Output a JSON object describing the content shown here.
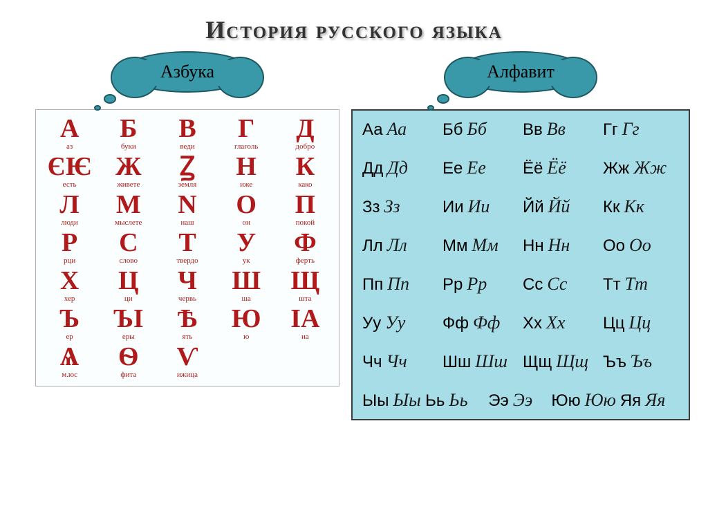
{
  "title": {
    "text": "История русского языка",
    "color": "#333333",
    "fontsize": 36
  },
  "cloud_labels": {
    "azbuka": {
      "text": "Азбука",
      "fontsize": 26,
      "color": "#000000"
    },
    "alphabet": {
      "text": "Алфавит",
      "fontsize": 26,
      "color": "#000000"
    }
  },
  "cloud_style": {
    "fill": "#3a99a8",
    "stroke": "#1f5862",
    "stroke_width": 2
  },
  "azbuka": {
    "letter_color": "#b01a1a",
    "name_color": "#b01a1a",
    "letter_fontsize": 38,
    "name_fontsize": 11,
    "background": "#fbfefe",
    "border_color": "#b0b0b0",
    "cells": [
      {
        "l": "А",
        "n": "аз"
      },
      {
        "l": "Б",
        "n": "буки"
      },
      {
        "l": "В",
        "n": "веди"
      },
      {
        "l": "Г",
        "n": "глаголь"
      },
      {
        "l": "Д",
        "n": "добро"
      },
      {
        "l": "ЄѤ",
        "n": "есть"
      },
      {
        "l": "Ж",
        "n": "живете"
      },
      {
        "l": "Ꙁ",
        "n": "земля"
      },
      {
        "l": "Н",
        "n": "иже"
      },
      {
        "l": "К",
        "n": "како"
      },
      {
        "l": "Л",
        "n": "люди"
      },
      {
        "l": "М",
        "n": "мыслете"
      },
      {
        "l": "N",
        "n": "наш"
      },
      {
        "l": "О",
        "n": "он"
      },
      {
        "l": "П",
        "n": "покой"
      },
      {
        "l": "Р",
        "n": "рци"
      },
      {
        "l": "С",
        "n": "слово"
      },
      {
        "l": "Т",
        "n": "твердо"
      },
      {
        "l": "У",
        "n": "ук"
      },
      {
        "l": "Ф",
        "n": "ферть"
      },
      {
        "l": "Х",
        "n": "хер"
      },
      {
        "l": "Ц",
        "n": "ци"
      },
      {
        "l": "Ч",
        "n": "червь"
      },
      {
        "l": "Ш",
        "n": "ша"
      },
      {
        "l": "Щ",
        "n": "шта"
      },
      {
        "l": "Ъ",
        "n": "ер"
      },
      {
        "l": "ЪӀ",
        "n": "еры"
      },
      {
        "l": "Ѣ",
        "n": "ять"
      },
      {
        "l": "Ю",
        "n": "ю"
      },
      {
        "l": "ІА",
        "n": "иа"
      },
      {
        "l": "Ѧ",
        "n": "м.юс"
      },
      {
        "l": "Ѳ",
        "n": "фита"
      },
      {
        "l": "Ѵ",
        "n": "ижица"
      },
      {
        "l": "",
        "n": ""
      },
      {
        "l": "",
        "n": ""
      }
    ]
  },
  "alphabet": {
    "background": "#a7dde7",
    "border_color": "#3c3c3c",
    "print_color": "#000000",
    "cursive_color": "#1a1a1a",
    "print_fontsize": 24,
    "cursive_fontsize": 26,
    "cells": [
      {
        "p": "Аа",
        "c": "Аа"
      },
      {
        "p": "Бб",
        "c": "Бб"
      },
      {
        "p": "Вв",
        "c": "Вв"
      },
      {
        "p": "Гг",
        "c": "Гг"
      },
      {
        "p": "Дд",
        "c": "Дд"
      },
      {
        "p": "Ее",
        "c": "Ее"
      },
      {
        "p": "Ёё",
        "c": "Ёё"
      },
      {
        "p": "Жж",
        "c": "Жж"
      },
      {
        "p": "Зз",
        "c": "Зз"
      },
      {
        "p": "Ии",
        "c": "Ии"
      },
      {
        "p": "Йй",
        "c": "Йй"
      },
      {
        "p": "Кк",
        "c": "Кк"
      },
      {
        "p": "Лл",
        "c": "Лл"
      },
      {
        "p": "Мм",
        "c": "Мм"
      },
      {
        "p": "Нн",
        "c": "Нн"
      },
      {
        "p": "Оо",
        "c": "Оо"
      },
      {
        "p": "Пп",
        "c": "Пп"
      },
      {
        "p": "Рр",
        "c": "Рр"
      },
      {
        "p": "Сс",
        "c": "Сс"
      },
      {
        "p": "Тт",
        "c": "Тт"
      },
      {
        "p": "Уу",
        "c": "Уу"
      },
      {
        "p": "Фф",
        "c": "Фф"
      },
      {
        "p": "Хх",
        "c": "Хх"
      },
      {
        "p": "Цц",
        "c": "Цц"
      },
      {
        "p": "Чч",
        "c": "Чч"
      },
      {
        "p": "Шш",
        "c": "Шш"
      },
      {
        "p": "Щщ",
        "c": "Щщ"
      },
      {
        "p": "Ъъ",
        "c": "Ъъ"
      },
      {
        "p": "Ыы",
        "c": "Ыы"
      },
      {
        "p": "Ьь",
        "c": "Ьь"
      },
      {
        "p": "Ээ",
        "c": "Ээ"
      },
      {
        "p": "Юю",
        "c": "Юю"
      },
      {
        "p": "Яя",
        "c": "Яя"
      }
    ],
    "last_row_start": 28
  }
}
